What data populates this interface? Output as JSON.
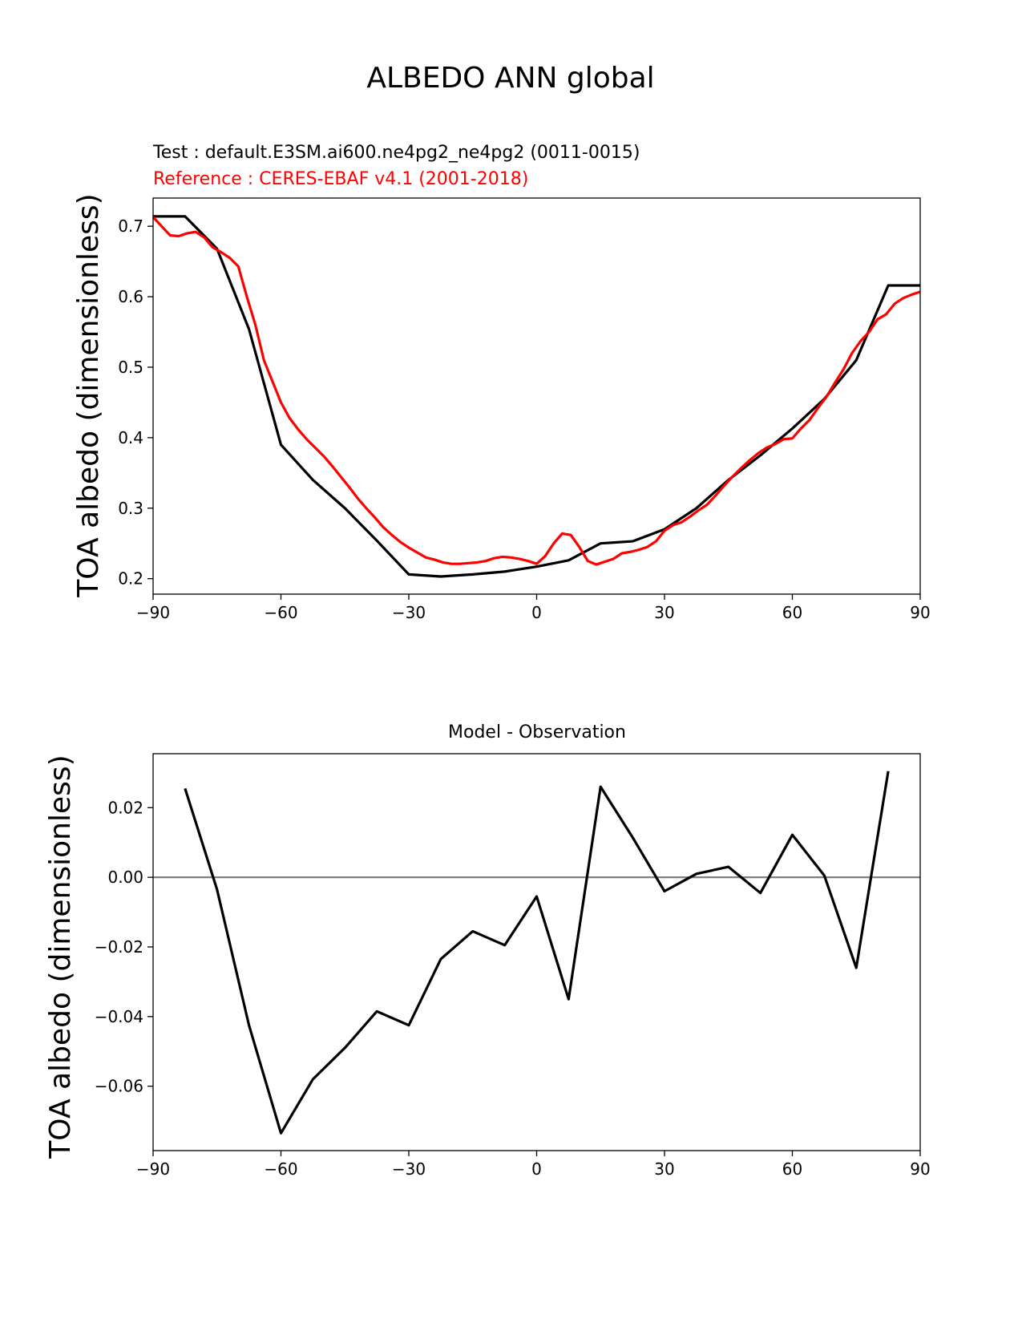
{
  "suptitle": "ALBEDO ANN global",
  "colors": {
    "test": "#000000",
    "reference": "#ff0000",
    "zero_line": "#808080"
  },
  "chart_data": [
    {
      "type": "line",
      "title_test": "Test : default.E3SM.ai600.ne4pg2_ne4pg2 (0011-0015)",
      "title_reference": "Reference : CERES-EBAF v4.1 (2001-2018)",
      "xlabel": "",
      "ylabel": "TOA albedo (dimensionless)",
      "xlim": [
        -90,
        90
      ],
      "ylim": [
        0.178,
        0.74
      ],
      "xticks": [
        -90,
        -60,
        -30,
        0,
        30,
        60,
        90
      ],
      "xtick_labels": [
        "−90",
        "−60",
        "−30",
        "0",
        "30",
        "60",
        "90"
      ],
      "yticks": [
        0.2,
        0.3,
        0.4,
        0.5,
        0.6,
        0.7
      ],
      "ytick_labels": [
        "0.2",
        "0.3",
        "0.4",
        "0.5",
        "0.6",
        "0.7"
      ],
      "series": [
        {
          "name": "Test",
          "color": "#000000",
          "x": [
            -90,
            -82.5,
            -75,
            -67.5,
            -60,
            -52.5,
            -45,
            -37.5,
            -30,
            -22.5,
            -15,
            -7.5,
            0,
            7.5,
            15,
            22.5,
            30,
            37.5,
            45,
            52.5,
            60,
            67.5,
            75,
            82.5,
            90
          ],
          "y": [
            0.714,
            0.714,
            0.668,
            0.554,
            0.39,
            0.34,
            0.3,
            0.254,
            0.206,
            0.203,
            0.206,
            0.21,
            0.217,
            0.226,
            0.25,
            0.253,
            0.27,
            0.3,
            0.34,
            0.375,
            0.413,
            0.455,
            0.51,
            0.616,
            0.616
          ]
        },
        {
          "name": "Reference",
          "color": "#ff0000",
          "x": [
            -90,
            -88,
            -86,
            -84,
            -82,
            -80,
            -78,
            -76,
            -74,
            -72,
            -70,
            -68,
            -66,
            -64,
            -62,
            -60,
            -58,
            -56,
            -54,
            -52,
            -50,
            -48,
            -46,
            -44,
            -42,
            -40,
            -38,
            -36,
            -34,
            -32,
            -30,
            -28,
            -26,
            -24,
            -22,
            -20,
            -18,
            -16,
            -14,
            -12,
            -10,
            -8,
            -6,
            -4,
            -2,
            0,
            2,
            4,
            6,
            8,
            10,
            12,
            14,
            16,
            18,
            20,
            22,
            24,
            26,
            28,
            30,
            32,
            34,
            36,
            38,
            40,
            42,
            44,
            46,
            48,
            50,
            52,
            54,
            56,
            58,
            60,
            62,
            64,
            66,
            68,
            70,
            72,
            74,
            76,
            78,
            80,
            82,
            84,
            86,
            88,
            90
          ],
          "y": [
            0.713,
            0.7,
            0.687,
            0.686,
            0.69,
            0.692,
            0.684,
            0.67,
            0.663,
            0.655,
            0.643,
            0.6,
            0.56,
            0.51,
            0.48,
            0.45,
            0.428,
            0.412,
            0.398,
            0.386,
            0.374,
            0.36,
            0.345,
            0.33,
            0.314,
            0.3,
            0.287,
            0.273,
            0.262,
            0.252,
            0.244,
            0.237,
            0.23,
            0.227,
            0.223,
            0.221,
            0.221,
            0.222,
            0.223,
            0.225,
            0.229,
            0.231,
            0.23,
            0.228,
            0.225,
            0.221,
            0.232,
            0.25,
            0.264,
            0.262,
            0.245,
            0.225,
            0.22,
            0.224,
            0.228,
            0.236,
            0.238,
            0.241,
            0.245,
            0.253,
            0.268,
            0.276,
            0.28,
            0.288,
            0.297,
            0.305,
            0.318,
            0.332,
            0.345,
            0.357,
            0.368,
            0.378,
            0.386,
            0.391,
            0.398,
            0.399,
            0.413,
            0.425,
            0.442,
            0.458,
            0.478,
            0.497,
            0.52,
            0.537,
            0.55,
            0.568,
            0.575,
            0.59,
            0.598,
            0.603,
            0.607
          ]
        }
      ]
    },
    {
      "type": "line",
      "title": "Model - Observation",
      "xlabel": "",
      "ylabel": "TOA albedo (dimensionless)",
      "xlim": [
        -90,
        90
      ],
      "ylim": [
        -0.0785,
        0.0355
      ],
      "xticks": [
        -90,
        -60,
        -30,
        0,
        30,
        60,
        90
      ],
      "xtick_labels": [
        "−90",
        "−60",
        "−30",
        "0",
        "30",
        "60",
        "90"
      ],
      "yticks": [
        -0.06,
        -0.04,
        -0.02,
        0.0,
        0.02
      ],
      "ytick_labels": [
        "−0.06",
        "−0.04",
        "−0.02",
        "0.00",
        "0.02"
      ],
      "zero_line": 0.0,
      "series": [
        {
          "name": "Model - Observation",
          "color": "#000000",
          "x": [
            -82.5,
            -75,
            -67.5,
            -60,
            -52.5,
            -45,
            -37.5,
            -30,
            -22.5,
            -15,
            -7.5,
            0,
            7.5,
            15,
            22.5,
            30,
            37.5,
            45,
            52.5,
            60,
            67.5,
            75,
            82.5
          ],
          "y": [
            0.0255,
            -0.0035,
            -0.0425,
            -0.0735,
            -0.058,
            -0.049,
            -0.0385,
            -0.0425,
            -0.0235,
            -0.0155,
            -0.0195,
            -0.0055,
            -0.035,
            0.026,
            0.0115,
            -0.004,
            0.001,
            0.003,
            -0.0045,
            0.0122,
            0.0005,
            -0.026,
            0.0305
          ]
        }
      ]
    }
  ]
}
